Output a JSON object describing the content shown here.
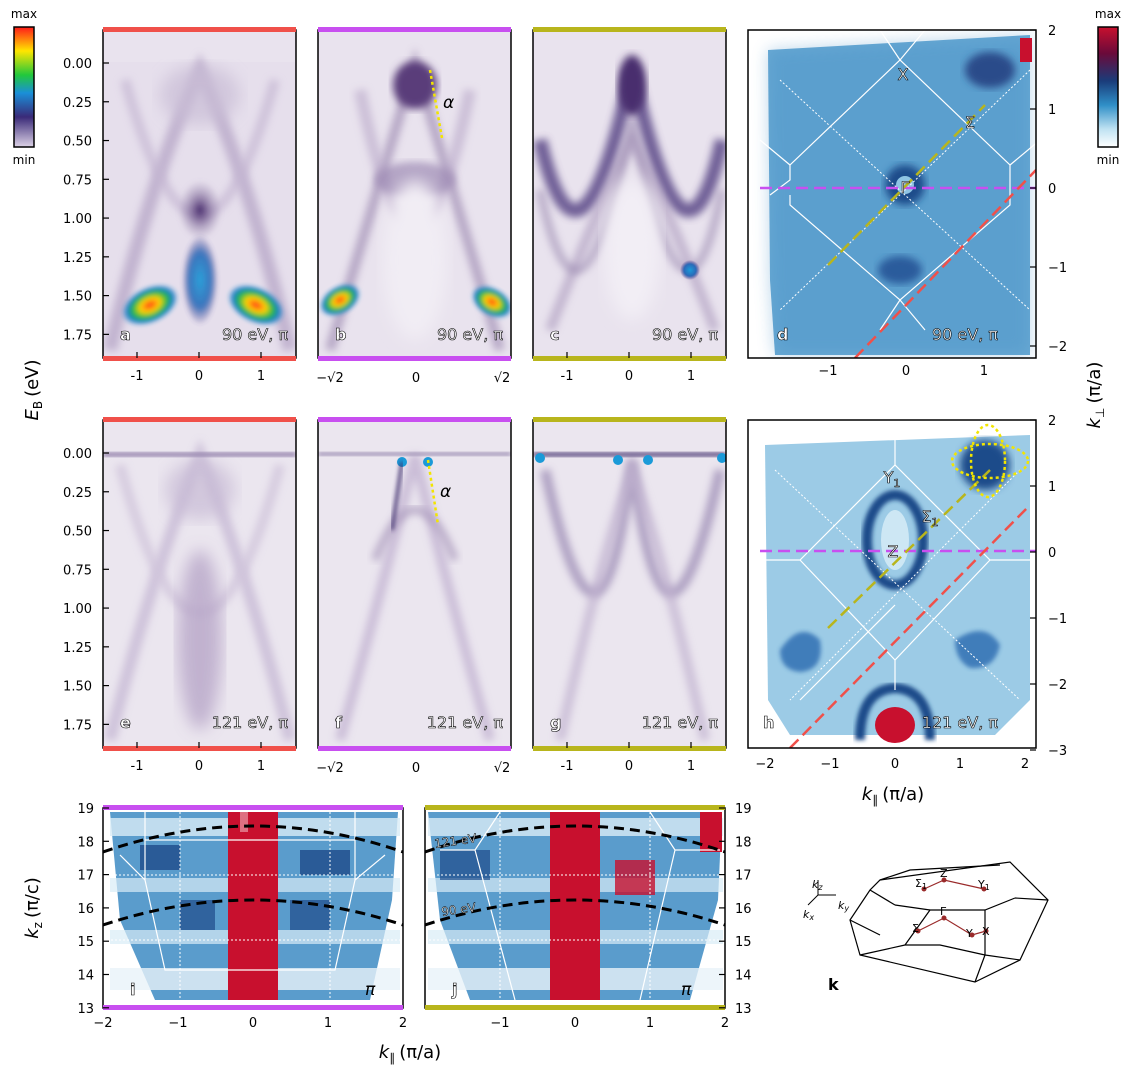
{
  "figure": {
    "colorbars": {
      "left": {
        "max_label": "max",
        "min_label": "min",
        "scheme": "rainbow",
        "colors": [
          "#ff1a1a",
          "#ffe600",
          "#22c83c",
          "#1a8fd8",
          "#3a2a78",
          "#dcd2e6"
        ]
      },
      "right": {
        "max_label": "max",
        "min_label": "min",
        "scheme": "blue-red",
        "colors": [
          "#c8102e",
          "#6a0a3a",
          "#1a3c7a",
          "#2f8fc7",
          "#bfe2f2",
          "#ffffff"
        ]
      }
    },
    "axis_titles": {
      "left_y": "E",
      "left_y_sub": "B",
      "left_y_unit": "(eV)",
      "right_y": "k",
      "right_y_sub": "⊥",
      "right_y_unit": "(π/a)",
      "bottom_kpar_top": "k",
      "bottom_kpar_sub": "∥",
      "bottom_kpar_unit": "(π/a)",
      "kz": "k",
      "kz_sub": "z",
      "kz_unit": "(π/c)"
    },
    "energy_ticks": [
      "0.00",
      "0.25",
      "0.50",
      "0.75",
      "1.00",
      "1.25",
      "1.50",
      "1.75"
    ],
    "kpar_ticks_a": [
      "-1",
      "0",
      "1"
    ],
    "kpar_ticks_b": [
      "−√2",
      "0",
      "√2"
    ],
    "kperp_ticks_d": [
      "2",
      "1",
      "0",
      "−1",
      "−2"
    ],
    "kperp_ticks_h": [
      "2",
      "1",
      "0",
      "−1",
      "−2",
      "−3"
    ],
    "kpar_ticks_h": [
      "−2",
      "−1",
      "0",
      "1",
      "2"
    ],
    "kz_ticks": [
      "19",
      "18",
      "17",
      "16",
      "15",
      "14",
      "13"
    ],
    "kpar_ticks_ij": [
      "−2",
      "−1",
      "0",
      "1",
      "2"
    ],
    "panels": [
      {
        "id": "a",
        "letter": "a",
        "caption": "90 eV, π",
        "bar_color": "#f0504a"
      },
      {
        "id": "b",
        "letter": "b",
        "caption": "90 eV, π",
        "bar_color": "#c84ff0",
        "annot": "α"
      },
      {
        "id": "c",
        "letter": "c",
        "caption": "90 eV, π",
        "bar_color": "#b8b51c"
      },
      {
        "id": "d",
        "letter": "d",
        "caption": "90 eV, π",
        "points": [
          "X",
          "Σ",
          "Γ"
        ]
      },
      {
        "id": "e",
        "letter": "e",
        "caption": "121 eV, π",
        "bar_color": "#f0504a"
      },
      {
        "id": "f",
        "letter": "f",
        "caption": "121 eV, π",
        "bar_color": "#c84ff0",
        "annot": "α"
      },
      {
        "id": "g",
        "letter": "g",
        "caption": "121 eV, π",
        "bar_color": "#b8b51c"
      },
      {
        "id": "h",
        "letter": "h",
        "caption": "121 eV, π",
        "points": [
          "Y",
          "Σ",
          "Z"
        ],
        "point_sub": "1"
      },
      {
        "id": "i",
        "letter": "i",
        "caption": "π",
        "bar_color": "#c84ff0"
      },
      {
        "id": "j",
        "letter": "j",
        "caption": "π",
        "bar_color": "#b8b51c",
        "curve_labels": [
          "121 eV",
          "90 eV"
        ]
      },
      {
        "id": "k",
        "letter": "k",
        "bz_labels": [
          "Z",
          "Σ",
          "Y",
          "Γ",
          "Σ",
          "Y",
          "X"
        ],
        "bz_label_sub": "1",
        "axes_labels": [
          "k",
          "k",
          "k"
        ],
        "axes_subs": [
          "z",
          "y",
          "x"
        ]
      }
    ]
  }
}
